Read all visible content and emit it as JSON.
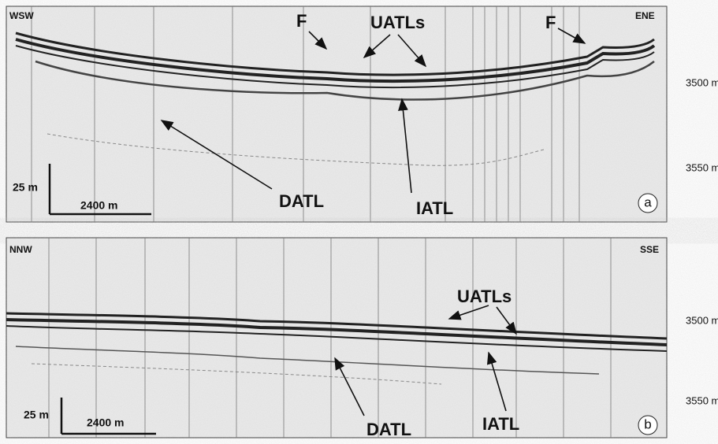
{
  "panel_a": {
    "left_direction": "WSW",
    "right_direction": "ENE",
    "fault_label_1": "F",
    "fault_label_2": "F",
    "uatls_label": "UATLs",
    "datl_label": "DATL",
    "iatl_label": "IATL",
    "vertical_scale": "25 m",
    "horizontal_scale": "2400 m",
    "panel_letter": "a",
    "depth_upper": "3500 m",
    "depth_lower": "3550 m"
  },
  "panel_b": {
    "left_direction": "NNW",
    "right_direction": "SSE",
    "uatls_label": "UATLs",
    "datl_label": "DATL",
    "iatl_label": "IATL",
    "vertical_scale": "25 m",
    "horizontal_scale": "2400 m",
    "panel_letter": "b",
    "depth_upper": "3500 m",
    "depth_lower": "3550 m"
  }
}
